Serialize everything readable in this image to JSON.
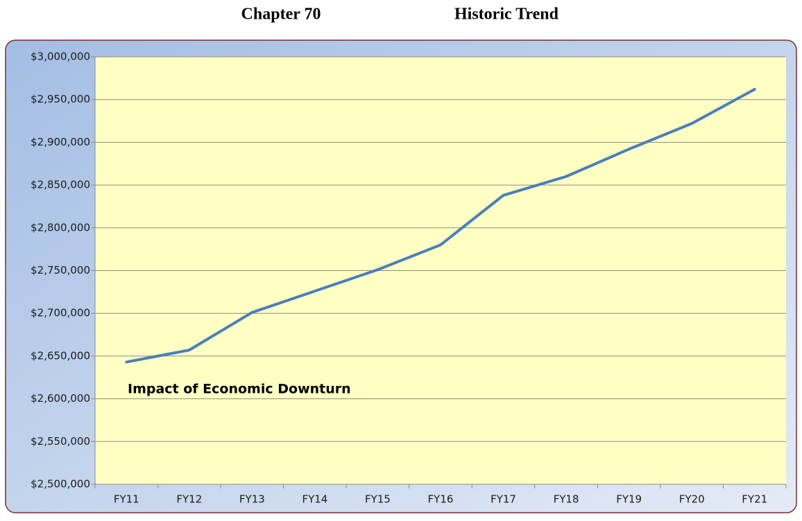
{
  "chart_data": {
    "type": "line",
    "title": "Chapter 70",
    "subtitle": "Historic Trend",
    "annotation": "Impact of Economic Downturn",
    "categories": [
      "FY11",
      "FY12",
      "FY13",
      "FY14",
      "FY15",
      "FY16",
      "FY17",
      "FY18",
      "FY19",
      "FY20",
      "FY21"
    ],
    "values": [
      2643000,
      2657000,
      2701000,
      2726000,
      2751000,
      2780000,
      2838000,
      2860000,
      2892000,
      2922000,
      2962000
    ],
    "color": "#4a7ebb",
    "ylim": [
      2500000,
      3000000
    ],
    "yticks": [
      {
        "value": 2500000,
        "label": "$2,500,000"
      },
      {
        "value": 2550000,
        "label": "$2,550,000"
      },
      {
        "value": 2600000,
        "label": "$2,600,000"
      },
      {
        "value": 2650000,
        "label": "$2,650,000"
      },
      {
        "value": 2700000,
        "label": "$2,700,000"
      },
      {
        "value": 2750000,
        "label": "$2,750,000"
      },
      {
        "value": 2800000,
        "label": "$2,800,000"
      },
      {
        "value": 2850000,
        "label": "$2,850,000"
      },
      {
        "value": 2900000,
        "label": "$2,900,000"
      },
      {
        "value": 2950000,
        "label": "$2,950,000"
      },
      {
        "value": 3000000,
        "label": "$3,000,000"
      }
    ],
    "grid": true
  }
}
